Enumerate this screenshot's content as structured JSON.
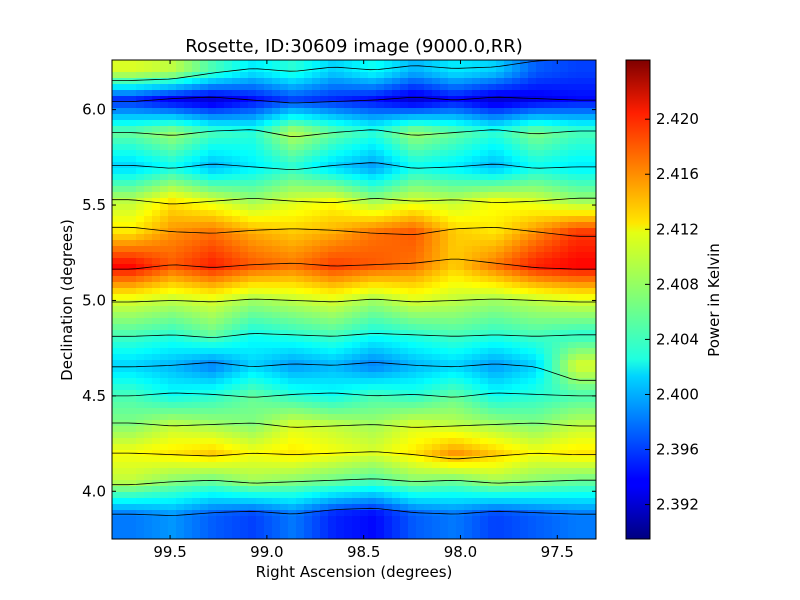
{
  "chart_data": {
    "type": "heatmap",
    "title": "Rosette, ID:30609 image (9000.0,RR)",
    "xlabel": "Right Ascension (degrees)",
    "ylabel": "Declination (degrees)",
    "xlim": [
      99.8,
      97.3
    ],
    "ylim": [
      3.75,
      6.26
    ],
    "xticks": [
      "99.5",
      "99.0",
      "98.5",
      "98.0",
      "97.5"
    ],
    "xtick_values": [
      99.5,
      99.0,
      98.5,
      98.0,
      97.5
    ],
    "yticks": [
      "4.0",
      "4.5",
      "5.0",
      "5.5",
      "6.0"
    ],
    "ytick_values": [
      4.0,
      4.5,
      5.0,
      5.5,
      6.0
    ],
    "colorbar": {
      "label": "Power in Kelvin",
      "range": [
        2.3895,
        2.4243
      ],
      "ticks": [
        "2.392",
        "2.396",
        "2.400",
        "2.404",
        "2.408",
        "2.412",
        "2.416",
        "2.420"
      ],
      "tick_values": [
        2.392,
        2.396,
        2.4,
        2.404,
        2.408,
        2.412,
        2.416,
        2.42
      ],
      "colormap": "jet"
    },
    "contours": true,
    "rows_dec": [
      6.2,
      6.05,
      5.88,
      5.7,
      5.52,
      5.36,
      5.18,
      5.0,
      4.82,
      4.66,
      4.5,
      4.35,
      4.2,
      4.05,
      3.88
    ],
    "row_values": [
      2.404,
      2.394,
      2.406,
      2.402,
      2.41,
      2.415,
      2.418,
      2.409,
      2.404,
      2.4,
      2.405,
      2.408,
      2.411,
      2.407,
      2.398
    ],
    "grid_values": [
      [
        2.41,
        2.409,
        2.405,
        2.402,
        2.404,
        2.401,
        2.403,
        2.4,
        2.402,
        2.401,
        2.397,
        2.396
      ],
      [
        2.395,
        2.393,
        2.392,
        2.394,
        2.396,
        2.395,
        2.394,
        2.392,
        2.394,
        2.392,
        2.393,
        2.394
      ],
      [
        2.406,
        2.408,
        2.405,
        2.404,
        2.409,
        2.406,
        2.404,
        2.408,
        2.406,
        2.404,
        2.407,
        2.405
      ],
      [
        2.401,
        2.403,
        2.4,
        2.402,
        2.404,
        2.401,
        2.399,
        2.403,
        2.402,
        2.4,
        2.403,
        2.402
      ],
      [
        2.409,
        2.412,
        2.41,
        2.408,
        2.41,
        2.411,
        2.408,
        2.41,
        2.409,
        2.411,
        2.41,
        2.408
      ],
      [
        2.412,
        2.415,
        2.416,
        2.414,
        2.413,
        2.414,
        2.416,
        2.417,
        2.413,
        2.412,
        2.415,
        2.418
      ],
      [
        2.42,
        2.417,
        2.419,
        2.417,
        2.416,
        2.418,
        2.417,
        2.416,
        2.413,
        2.416,
        2.419,
        2.42
      ],
      [
        2.41,
        2.409,
        2.41,
        2.408,
        2.409,
        2.41,
        2.408,
        2.41,
        2.409,
        2.408,
        2.409,
        2.41
      ],
      [
        2.405,
        2.404,
        2.406,
        2.403,
        2.404,
        2.405,
        2.403,
        2.404,
        2.405,
        2.404,
        2.405,
        2.404
      ],
      [
        2.401,
        2.4,
        2.398,
        2.401,
        2.399,
        2.4,
        2.398,
        2.4,
        2.401,
        2.399,
        2.401,
        2.41
      ],
      [
        2.405,
        2.403,
        2.404,
        2.406,
        2.404,
        2.403,
        2.405,
        2.404,
        2.406,
        2.403,
        2.404,
        2.405
      ],
      [
        2.407,
        2.409,
        2.408,
        2.407,
        2.41,
        2.409,
        2.408,
        2.41,
        2.409,
        2.408,
        2.407,
        2.409
      ],
      [
        2.411,
        2.412,
        2.413,
        2.411,
        2.412,
        2.411,
        2.41,
        2.412,
        2.415,
        2.413,
        2.411,
        2.412
      ],
      [
        2.409,
        2.407,
        2.406,
        2.408,
        2.407,
        2.406,
        2.405,
        2.407,
        2.406,
        2.408,
        2.407,
        2.406
      ],
      [
        2.398,
        2.399,
        2.397,
        2.396,
        2.398,
        2.395,
        2.394,
        2.397,
        2.398,
        2.396,
        2.397,
        2.398
      ]
    ]
  }
}
